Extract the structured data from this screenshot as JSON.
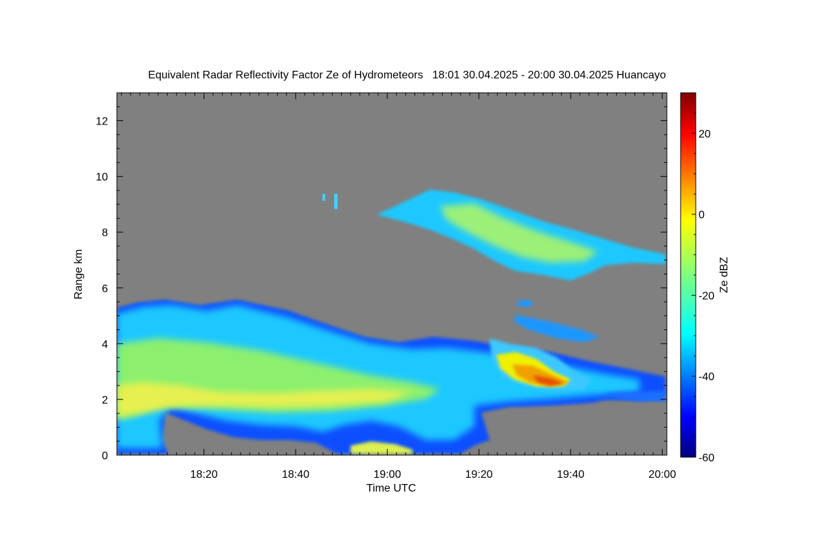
{
  "chart_data": {
    "type": "heatmap",
    "title": "Equivalent Radar Reflectivity Factor Ze of Hydrometeors   18:01 30.04.2025 - 20:00 30.04.2025 Huancayo",
    "xlabel": "Time UTC",
    "ylabel": "Range km",
    "x_ticks": [
      "18:20",
      "18:40",
      "19:00",
      "19:20",
      "19:40",
      "20:00"
    ],
    "x_range_minutes_utc": [
      1081,
      1201
    ],
    "y_ticks": [
      0,
      2,
      4,
      6,
      8,
      10,
      12
    ],
    "ylim": [
      0,
      13
    ],
    "colorbar": {
      "label": "Ze dBZ",
      "ticks": [
        20,
        0,
        -20,
        -40,
        -60
      ],
      "range": [
        -60,
        30
      ],
      "colormap": "jet",
      "colors": [
        "#00007f",
        "#0000ff",
        "#007fff",
        "#00ffff",
        "#7fff7f",
        "#ffff00",
        "#ff7f00",
        "#ff0000",
        "#7f0000"
      ]
    },
    "background_color": "#808080",
    "features": [
      {
        "region": "low-level cloud",
        "time_start": "18:01",
        "time_end": "19:55",
        "range_km": [
          0,
          5.6
        ],
        "typical_dbz": -22
      },
      {
        "region": "upper cloud layer",
        "time_start": "18:47",
        "time_end": "20:00",
        "range_km": [
          6.3,
          9.5
        ],
        "typical_dbz": -20
      },
      {
        "region": "strong echo core",
        "time_start": "19:24",
        "time_end": "19:44",
        "range_km": [
          2.5,
          3.6
        ],
        "typical_dbz": 2
      }
    ]
  }
}
